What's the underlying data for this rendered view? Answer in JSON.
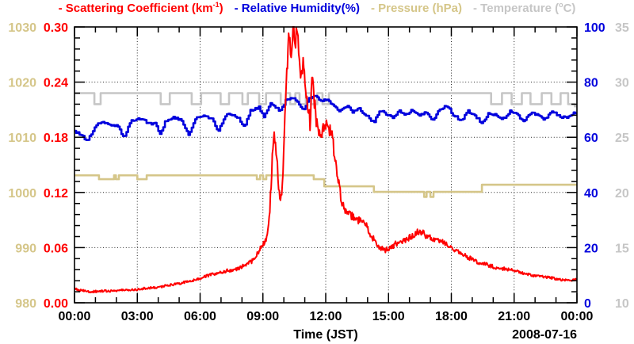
{
  "page": {
    "background": "#ffffff"
  },
  "legend": {
    "items": [
      {
        "name": "scattering",
        "pre": "- Scattering Coefficient (km",
        "sup": "-1",
        "post": ")",
        "color": "#ff0000"
      },
      {
        "name": "humidity",
        "pre": "- Relative Humidity(%)",
        "sup": "",
        "post": "",
        "color": "#0000dd"
      },
      {
        "name": "pressure",
        "pre": "- Pressure (hPa)",
        "sup": "",
        "post": "",
        "color": "#d5c689"
      },
      {
        "name": "temperature",
        "pre": "- Temperature (",
        "sup": "o",
        "post": "C)",
        "color": "#c6c6c6"
      }
    ]
  },
  "chart_data": {
    "type": "line",
    "title": "",
    "xlabel": "Time (JST)",
    "date_label": "2008-07-16",
    "grid": {
      "scatter_h_values": [
        0.06,
        0.12,
        0.18,
        0.24
      ],
      "v_hours": [
        3,
        6,
        9,
        12,
        15,
        18,
        21
      ]
    },
    "x_axis": {
      "range_hours": [
        0,
        24
      ],
      "major_hours": [
        0,
        3,
        6,
        9,
        12,
        15,
        18,
        21,
        24
      ],
      "minor_step_hours": 1,
      "tick_labels": [
        "00:00",
        "03:00",
        "06:00",
        "09:00",
        "12:00",
        "15:00",
        "18:00",
        "21:00",
        "00:00"
      ]
    },
    "axes": {
      "scattering": {
        "label": "Scattering Coefficient (km-1)",
        "color": "#ff0000",
        "range": [
          0,
          0.3
        ],
        "tick_values": [
          0.3,
          0.24,
          0.18,
          0.12,
          0.06,
          0.0
        ],
        "tick_labels": [
          "0.30",
          "0.24",
          "0.18",
          "0.12",
          "0.06",
          "0.00"
        ],
        "minor_step": 0.012
      },
      "humidity": {
        "label": "Relative Humidity(%)",
        "color": "#0000dd",
        "range": [
          0,
          100
        ],
        "tick_values": [
          100,
          80,
          60,
          40,
          20,
          0
        ],
        "tick_labels": [
          "100",
          "80",
          "60",
          "40",
          "20",
          "0"
        ],
        "minor_step": 4
      },
      "pressure": {
        "label": "Pressure (hPa)",
        "color": "#d5c689",
        "range": [
          980,
          1030
        ],
        "tick_values": [
          1030,
          1020,
          1010,
          1000,
          990,
          980
        ],
        "tick_labels": [
          "1030",
          "1020",
          "1010",
          "1000",
          "990",
          "980"
        ],
        "minor_step": 2
      },
      "temperature": {
        "label": "Temperature (C)",
        "color": "#c6c6c6",
        "range": [
          10,
          35
        ],
        "tick_values": [
          35,
          30,
          25,
          20,
          15,
          10
        ],
        "tick_labels": [
          "35",
          "30",
          "25",
          "20",
          "15",
          "10"
        ],
        "minor_step": 1
      }
    },
    "series": [
      {
        "name": "temperature",
        "axis": "temperature",
        "color": "#c6c6c6",
        "style": "step",
        "width": 2.6,
        "points": [
          [
            0,
            29
          ],
          [
            0.95,
            28
          ],
          [
            1.25,
            29
          ],
          [
            4.12,
            28
          ],
          [
            4.55,
            29
          ],
          [
            5.6,
            28
          ],
          [
            6.05,
            29
          ],
          [
            6.98,
            28
          ],
          [
            7.38,
            29
          ],
          [
            8.02,
            28
          ],
          [
            8.28,
            29
          ],
          [
            8.82,
            28
          ],
          [
            9.15,
            29
          ],
          [
            9.85,
            28
          ],
          [
            10.1,
            29
          ],
          [
            10.3,
            28
          ],
          [
            10.55,
            29
          ],
          [
            10.75,
            28
          ],
          [
            11.05,
            29
          ],
          [
            11.3,
            28
          ],
          [
            11.6,
            29
          ],
          [
            11.85,
            28
          ],
          [
            12.15,
            29
          ],
          [
            19.9,
            28
          ],
          [
            20.42,
            29
          ],
          [
            20.88,
            28
          ],
          [
            21.37,
            29
          ],
          [
            21.78,
            28
          ],
          [
            22.32,
            29
          ],
          [
            22.78,
            28
          ],
          [
            23.22,
            29
          ],
          [
            23.58,
            28
          ],
          [
            23.9,
            27.8
          ]
        ]
      },
      {
        "name": "pressure",
        "axis": "pressure",
        "color": "#d5c689",
        "style": "step",
        "width": 2.6,
        "points": [
          [
            0,
            1003.1
          ],
          [
            1.17,
            1002.4
          ],
          [
            1.89,
            1003.1
          ],
          [
            1.98,
            1002.4
          ],
          [
            2.12,
            1003.1
          ],
          [
            3.0,
            1002.4
          ],
          [
            3.45,
            1003.1
          ],
          [
            8.71,
            1002.4
          ],
          [
            8.87,
            1003.1
          ],
          [
            9.01,
            1002.4
          ],
          [
            9.16,
            1003.1
          ],
          [
            11.43,
            1002.4
          ],
          [
            11.93,
            1001.1
          ],
          [
            14.3,
            1000.1
          ],
          [
            16.7,
            999.2
          ],
          [
            16.82,
            1000.1
          ],
          [
            17.0,
            999.2
          ],
          [
            17.15,
            1000.1
          ],
          [
            19.46,
            1001.4
          ]
        ]
      },
      {
        "name": "relative_humidity",
        "axis": "humidity",
        "color": "#0000dd",
        "style": "step-line",
        "width": 2.6,
        "noise_abs": 0.45,
        "points": [
          [
            0,
            62
          ],
          [
            0.3,
            61
          ],
          [
            0.6,
            58.7
          ],
          [
            0.75,
            60.5
          ],
          [
            1.1,
            65.4
          ],
          [
            1.5,
            65
          ],
          [
            2.1,
            63.8
          ],
          [
            2.35,
            59.6
          ],
          [
            2.7,
            66
          ],
          [
            3.1,
            67
          ],
          [
            3.5,
            65.3
          ],
          [
            3.9,
            64.8
          ],
          [
            4.05,
            60.5
          ],
          [
            4.35,
            66
          ],
          [
            4.7,
            67.3
          ],
          [
            5.1,
            66
          ],
          [
            5.45,
            61
          ],
          [
            5.8,
            67
          ],
          [
            6.2,
            67.8
          ],
          [
            6.6,
            66.3
          ],
          [
            6.85,
            62
          ],
          [
            7.2,
            68
          ],
          [
            7.5,
            68.4
          ],
          [
            7.85,
            66.8
          ],
          [
            8.1,
            63.5
          ],
          [
            8.4,
            69.8
          ],
          [
            8.8,
            70.8
          ],
          [
            9.05,
            67
          ],
          [
            9.35,
            72.5
          ],
          [
            9.6,
            71
          ],
          [
            9.85,
            69.5
          ],
          [
            10.1,
            73.5
          ],
          [
            10.4,
            74.5
          ],
          [
            10.7,
            72.3
          ],
          [
            10.95,
            70
          ],
          [
            11.2,
            74
          ],
          [
            11.5,
            75
          ],
          [
            11.8,
            73
          ],
          [
            12.1,
            74
          ],
          [
            12.4,
            71
          ],
          [
            12.7,
            69.5
          ],
          [
            13,
            71.5
          ],
          [
            13.3,
            69
          ],
          [
            13.6,
            70.5
          ],
          [
            13.9,
            68
          ],
          [
            14.3,
            65.5
          ],
          [
            14.6,
            70
          ],
          [
            14.9,
            68.5
          ],
          [
            15.2,
            67
          ],
          [
            15.5,
            69.5
          ],
          [
            15.8,
            67.8
          ],
          [
            16.1,
            70
          ],
          [
            16.45,
            67.5
          ],
          [
            16.8,
            69.3
          ],
          [
            17.1,
            66
          ],
          [
            17.45,
            70.3
          ],
          [
            17.8,
            71.3
          ],
          [
            18.1,
            68
          ],
          [
            18.45,
            66
          ],
          [
            18.8,
            69.5
          ],
          [
            19.1,
            68
          ],
          [
            19.45,
            65.1
          ],
          [
            19.8,
            69
          ],
          [
            20.1,
            68
          ],
          [
            20.45,
            66.5
          ],
          [
            20.8,
            69.5
          ],
          [
            21.1,
            68.5
          ],
          [
            21.45,
            66
          ],
          [
            21.8,
            69
          ],
          [
            22.1,
            68
          ],
          [
            22.45,
            66.5
          ],
          [
            22.8,
            69.5
          ],
          [
            23.1,
            68
          ],
          [
            23.45,
            67
          ],
          [
            23.8,
            68.5
          ],
          [
            24,
            69
          ]
        ]
      },
      {
        "name": "scattering_coefficient",
        "axis": "scattering",
        "color": "#ff0000",
        "style": "noisy-line",
        "width": 2.0,
        "noise_factor": 0.05,
        "noise_min": 0.0012,
        "points": [
          [
            0,
            0.015
          ],
          [
            0.3,
            0.0135
          ],
          [
            0.7,
            0.012
          ],
          [
            1.2,
            0.0125
          ],
          [
            1.8,
            0.013
          ],
          [
            2.5,
            0.014
          ],
          [
            3,
            0.0145
          ],
          [
            3.5,
            0.016
          ],
          [
            4,
            0.017
          ],
          [
            4.5,
            0.019
          ],
          [
            5,
            0.021
          ],
          [
            5.5,
            0.0235
          ],
          [
            6,
            0.0265
          ],
          [
            6.3,
            0.029
          ],
          [
            6.7,
            0.0315
          ],
          [
            7,
            0.033
          ],
          [
            7.3,
            0.035
          ],
          [
            7.6,
            0.0355
          ],
          [
            7.9,
            0.038
          ],
          [
            8.2,
            0.042
          ],
          [
            8.5,
            0.0455
          ],
          [
            8.8,
            0.055
          ],
          [
            9,
            0.064
          ],
          [
            9.15,
            0.068
          ],
          [
            9.3,
            0.09
          ],
          [
            9.45,
            0.155
          ],
          [
            9.55,
            0.185
          ],
          [
            9.65,
            0.165
          ],
          [
            9.75,
            0.12
          ],
          [
            9.85,
            0.108
          ],
          [
            9.95,
            0.13
          ],
          [
            10.05,
            0.2
          ],
          [
            10.15,
            0.26
          ],
          [
            10.25,
            0.293
          ],
          [
            10.35,
            0.27
          ],
          [
            10.45,
            0.296
          ],
          [
            10.55,
            0.282
          ],
          [
            10.65,
            0.294
          ],
          [
            10.75,
            0.26
          ],
          [
            10.85,
            0.245
          ],
          [
            10.95,
            0.262
          ],
          [
            11.05,
            0.238
          ],
          [
            11.15,
            0.21
          ],
          [
            11.25,
            0.197
          ],
          [
            11.35,
            0.24
          ],
          [
            11.45,
            0.225
          ],
          [
            11.55,
            0.198
          ],
          [
            11.65,
            0.185
          ],
          [
            11.75,
            0.182
          ],
          [
            11.85,
            0.19
          ],
          [
            12,
            0.198
          ],
          [
            12.15,
            0.19
          ],
          [
            12.3,
            0.18
          ],
          [
            12.45,
            0.158
          ],
          [
            12.6,
            0.132
          ],
          [
            12.75,
            0.112
          ],
          [
            12.9,
            0.1
          ],
          [
            13.1,
            0.096
          ],
          [
            13.4,
            0.093
          ],
          [
            13.7,
            0.087
          ],
          [
            14,
            0.082
          ],
          [
            14.2,
            0.072
          ],
          [
            14.5,
            0.062
          ],
          [
            14.8,
            0.057
          ],
          [
            15.1,
            0.06
          ],
          [
            15.4,
            0.065
          ],
          [
            15.7,
            0.068
          ],
          [
            16,
            0.071
          ],
          [
            16.3,
            0.076
          ],
          [
            16.6,
            0.077
          ],
          [
            16.9,
            0.071
          ],
          [
            17.2,
            0.07
          ],
          [
            17.5,
            0.068
          ],
          [
            17.8,
            0.062
          ],
          [
            18.1,
            0.059
          ],
          [
            18.4,
            0.056
          ],
          [
            18.7,
            0.051
          ],
          [
            19,
            0.047
          ],
          [
            19.3,
            0.0435
          ],
          [
            19.6,
            0.042
          ],
          [
            19.9,
            0.04
          ],
          [
            20.2,
            0.038
          ],
          [
            20.5,
            0.037
          ],
          [
            20.9,
            0.036
          ],
          [
            21.2,
            0.034
          ],
          [
            21.5,
            0.0315
          ],
          [
            21.8,
            0.03
          ],
          [
            22.1,
            0.029
          ],
          [
            22.5,
            0.028
          ],
          [
            22.9,
            0.0265
          ],
          [
            23.3,
            0.025
          ],
          [
            23.7,
            0.0245
          ],
          [
            24,
            0.026
          ]
        ]
      }
    ]
  }
}
